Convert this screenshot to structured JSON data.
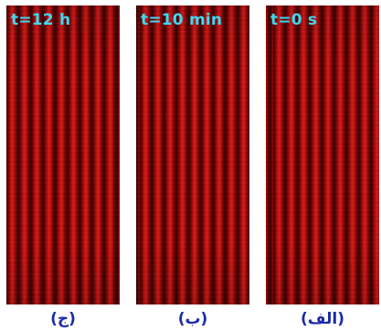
{
  "panels": [
    {
      "time": "t=12 h",
      "caption": "(ج)"
    },
    {
      "time": "t=10 min",
      "caption": "(ب)"
    },
    {
      "time": "t=0 s",
      "caption": "(الف)"
    }
  ],
  "colors": {
    "fringe_bright": "#d81a16",
    "fringe_dark": "#3a0000",
    "time_label": "#40d8f0",
    "caption": "#1a2aa8"
  }
}
